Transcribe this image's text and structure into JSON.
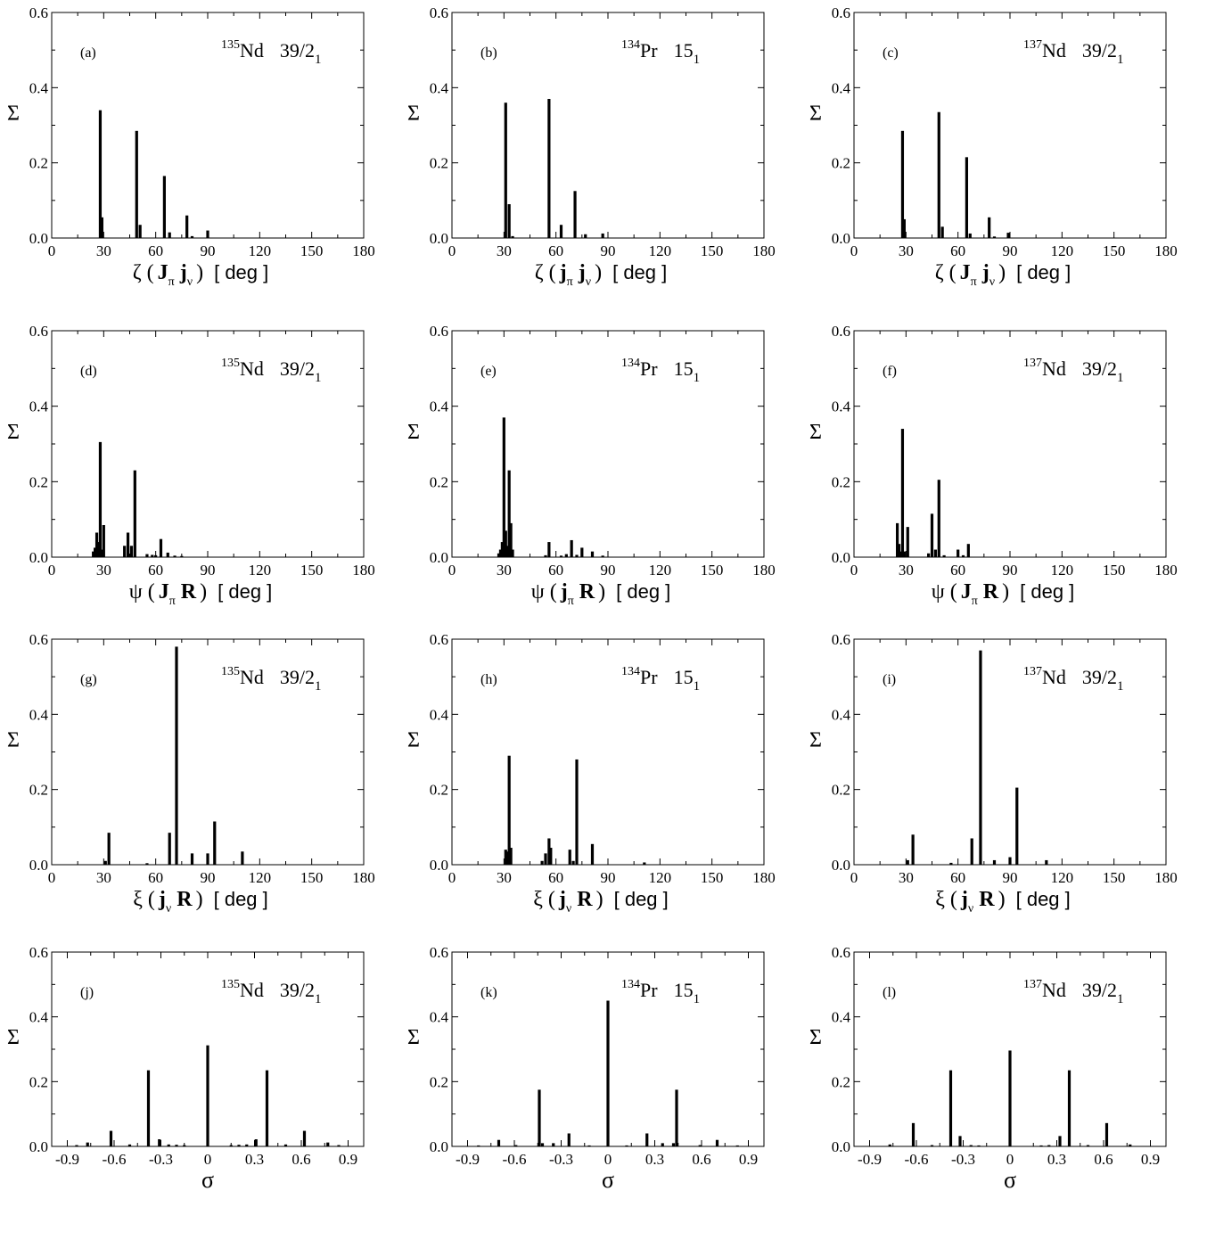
{
  "chart_data": [
    {
      "type": "bar",
      "panel": "(a)",
      "nucleus_mass": "135",
      "nucleus_symbol": "Nd",
      "state_main": "39/2",
      "state_sub": "1",
      "ylabel": "Σ",
      "xlabel": {
        "sym": "ζ",
        "v1": "J",
        "s1": "π",
        "v2": "j",
        "s2": "ν",
        "unit": "[ deg ]"
      },
      "xlim": [
        0,
        180
      ],
      "ylim": [
        0,
        0.6
      ],
      "xticks": [
        0,
        30,
        60,
        90,
        120,
        150,
        180
      ],
      "yticks": [
        0.0,
        0.2,
        0.4,
        0.6
      ],
      "yticklabels": [
        "0.0",
        "0.2",
        "0.4",
        "0.6"
      ],
      "grid": false,
      "x": [
        28,
        29,
        49,
        51,
        65,
        68,
        78,
        81,
        90
      ],
      "values": [
        0.34,
        0.055,
        0.285,
        0.035,
        0.165,
        0.015,
        0.06,
        0.005,
        0.02
      ]
    },
    {
      "type": "bar",
      "panel": "(b)",
      "nucleus_mass": "134",
      "nucleus_symbol": "Pr",
      "state_main": "15",
      "state_sub": "1",
      "ylabel": "Σ",
      "xlabel": {
        "sym": "ζ",
        "v1": "j",
        "s1": "π",
        "v2": "j",
        "s2": "ν",
        "unit": "[ deg ]"
      },
      "xlim": [
        0,
        180
      ],
      "ylim": [
        0,
        0.6
      ],
      "xticks": [
        0,
        30,
        60,
        90,
        120,
        150,
        180
      ],
      "yticks": [
        0.0,
        0.2,
        0.4,
        0.6
      ],
      "yticklabels": [
        "0.0",
        "0.2",
        "0.4",
        "0.6"
      ],
      "grid": false,
      "x": [
        31,
        33,
        35,
        56,
        63,
        71,
        77,
        87
      ],
      "values": [
        0.36,
        0.09,
        0.005,
        0.37,
        0.035,
        0.125,
        0.01,
        0.012
      ]
    },
    {
      "type": "bar",
      "panel": "(c)",
      "nucleus_mass": "137",
      "nucleus_symbol": "Nd",
      "state_main": "39/2",
      "state_sub": "1",
      "ylabel": "Σ",
      "xlabel": {
        "sym": "ζ",
        "v1": "J",
        "s1": "π",
        "v2": "j",
        "s2": "ν",
        "unit": "[ deg ]"
      },
      "xlim": [
        0,
        180
      ],
      "ylim": [
        0,
        0.6
      ],
      "xticks": [
        0,
        30,
        60,
        90,
        120,
        150,
        180
      ],
      "yticks": [
        0.0,
        0.2,
        0.4,
        0.6
      ],
      "yticklabels": [
        "0.0",
        "0.2",
        "0.4",
        "0.6"
      ],
      "grid": false,
      "x": [
        28,
        29,
        49,
        51,
        65,
        67,
        78,
        81,
        89
      ],
      "values": [
        0.285,
        0.05,
        0.335,
        0.03,
        0.215,
        0.012,
        0.055,
        0.004,
        0.014
      ]
    },
    {
      "type": "bar",
      "panel": "(d)",
      "nucleus_mass": "135",
      "nucleus_symbol": "Nd",
      "state_main": "39/2",
      "state_sub": "1",
      "ylabel": "Σ",
      "xlabel": {
        "sym": "ψ",
        "v1": "J",
        "s1": "π",
        "v2": "R",
        "s2": "",
        "unit": "[ deg ]"
      },
      "xlim": [
        0,
        180
      ],
      "ylim": [
        0,
        0.6
      ],
      "xticks": [
        0,
        30,
        60,
        90,
        120,
        150,
        180
      ],
      "yticks": [
        0.0,
        0.2,
        0.4,
        0.6
      ],
      "yticklabels": [
        "0.0",
        "0.2",
        "0.4",
        "0.6"
      ],
      "grid": false,
      "x": [
        24,
        25,
        26,
        27,
        28,
        29,
        30,
        42,
        44,
        46,
        48,
        55,
        58,
        60,
        63,
        67,
        71,
        75
      ],
      "values": [
        0.015,
        0.025,
        0.065,
        0.04,
        0.305,
        0.02,
        0.085,
        0.03,
        0.065,
        0.03,
        0.23,
        0.008,
        0.006,
        0.005,
        0.048,
        0.012,
        0.004,
        0.003
      ]
    },
    {
      "type": "bar",
      "panel": "(e)",
      "nucleus_mass": "134",
      "nucleus_symbol": "Pr",
      "state_main": "15",
      "state_sub": "1",
      "ylabel": "Σ",
      "xlabel": {
        "sym": "ψ",
        "v1": "j",
        "s1": "π",
        "v2": "R",
        "s2": "",
        "unit": "[ deg ]"
      },
      "xlim": [
        0,
        180
      ],
      "ylim": [
        0,
        0.6
      ],
      "xticks": [
        0,
        30,
        60,
        90,
        120,
        150,
        180
      ],
      "yticks": [
        0.0,
        0.2,
        0.4,
        0.6
      ],
      "yticklabels": [
        "0.0",
        "0.2",
        "0.4",
        "0.6"
      ],
      "grid": false,
      "x": [
        27,
        28,
        29,
        30,
        31,
        32,
        33,
        34,
        35,
        54,
        56,
        63,
        66,
        69,
        72,
        75,
        81,
        87
      ],
      "values": [
        0.01,
        0.02,
        0.04,
        0.37,
        0.07,
        0.03,
        0.23,
        0.09,
        0.02,
        0.005,
        0.04,
        0.004,
        0.008,
        0.045,
        0.006,
        0.025,
        0.015,
        0.004
      ]
    },
    {
      "type": "bar",
      "panel": "(f)",
      "nucleus_mass": "137",
      "nucleus_symbol": "Nd",
      "state_main": "39/2",
      "state_sub": "1",
      "ylabel": "Σ",
      "xlabel": {
        "sym": "ψ",
        "v1": "J",
        "s1": "π",
        "v2": "R",
        "s2": "",
        "unit": "[ deg ]"
      },
      "xlim": [
        0,
        180
      ],
      "ylim": [
        0,
        0.6
      ],
      "xticks": [
        0,
        30,
        60,
        90,
        120,
        150,
        180
      ],
      "yticks": [
        0.0,
        0.2,
        0.4,
        0.6
      ],
      "yticklabels": [
        "0.0",
        "0.2",
        "0.4",
        "0.6"
      ],
      "grid": false,
      "x": [
        25,
        26,
        27,
        28,
        29,
        31,
        43,
        45,
        47,
        49,
        52,
        60,
        63,
        66
      ],
      "values": [
        0.09,
        0.035,
        0.015,
        0.34,
        0.015,
        0.08,
        0.01,
        0.115,
        0.02,
        0.205,
        0.005,
        0.02,
        0.005,
        0.035
      ]
    },
    {
      "type": "bar",
      "panel": "(g)",
      "nucleus_mass": "135",
      "nucleus_symbol": "Nd",
      "state_main": "39/2",
      "state_sub": "1",
      "ylabel": "Σ",
      "xlabel": {
        "sym": "ξ",
        "v1": "j",
        "s1": "ν",
        "v2": "R",
        "s2": "",
        "unit": "[ deg ]"
      },
      "xlim": [
        0,
        180
      ],
      "ylim": [
        0,
        0.6
      ],
      "xticks": [
        0,
        30,
        60,
        90,
        120,
        150,
        180
      ],
      "yticks": [
        0.0,
        0.2,
        0.4,
        0.6
      ],
      "yticklabels": [
        "0.0",
        "0.2",
        "0.4",
        "0.6"
      ],
      "grid": false,
      "x": [
        31,
        33,
        55,
        68,
        72,
        81,
        90,
        94,
        110
      ],
      "values": [
        0.01,
        0.085,
        0.004,
        0.085,
        0.58,
        0.03,
        0.03,
        0.115,
        0.035
      ]
    },
    {
      "type": "bar",
      "panel": "(h)",
      "nucleus_mass": "134",
      "nucleus_symbol": "Pr",
      "state_main": "15",
      "state_sub": "1",
      "ylabel": "Σ",
      "xlabel": {
        "sym": "ξ",
        "v1": "j",
        "s1": "ν",
        "v2": "R",
        "s2": "",
        "unit": "[ deg ]"
      },
      "xlim": [
        0,
        180
      ],
      "ylim": [
        0,
        0.6
      ],
      "xticks": [
        0,
        30,
        60,
        90,
        120,
        150,
        180
      ],
      "yticks": [
        0.0,
        0.2,
        0.4,
        0.6
      ],
      "yticklabels": [
        "0.0",
        "0.2",
        "0.4",
        "0.6"
      ],
      "grid": false,
      "x": [
        31,
        32,
        33,
        34,
        52,
        54,
        56,
        57,
        68,
        70,
        72,
        81,
        111
      ],
      "values": [
        0.04,
        0.035,
        0.29,
        0.045,
        0.01,
        0.03,
        0.07,
        0.045,
        0.04,
        0.01,
        0.28,
        0.055,
        0.006
      ]
    },
    {
      "type": "bar",
      "panel": "(i)",
      "nucleus_mass": "137",
      "nucleus_symbol": "Nd",
      "state_main": "39/2",
      "state_sub": "1",
      "ylabel": "Σ",
      "xlabel": {
        "sym": "ξ",
        "v1": "j",
        "s1": "ν",
        "v2": "R",
        "s2": "",
        "unit": "[ deg ]"
      },
      "xlim": [
        0,
        180
      ],
      "ylim": [
        0,
        0.6
      ],
      "xticks": [
        0,
        30,
        60,
        90,
        120,
        150,
        180
      ],
      "yticks": [
        0.0,
        0.2,
        0.4,
        0.6
      ],
      "yticklabels": [
        "0.0",
        "0.2",
        "0.4",
        "0.6"
      ],
      "grid": false,
      "x": [
        31,
        34,
        56,
        68,
        73,
        81,
        90,
        94,
        111
      ],
      "values": [
        0.012,
        0.08,
        0.005,
        0.07,
        0.57,
        0.012,
        0.02,
        0.205,
        0.012
      ]
    },
    {
      "type": "bar",
      "panel": "(j)",
      "nucleus_mass": "135",
      "nucleus_symbol": "Nd",
      "state_main": "39/2",
      "state_sub": "1",
      "ylabel": "Σ",
      "xlabel": {
        "sym": "σ"
      },
      "xlim": [
        -1.0,
        1.0
      ],
      "ylim": [
        0,
        0.6
      ],
      "xticks": [
        -0.9,
        -0.6,
        -0.3,
        0,
        0.3,
        0.6,
        0.9
      ],
      "xticklabels": [
        "-0.9",
        "-0.6",
        "-0.3",
        "0",
        "0.3",
        "0.6",
        "0.9"
      ],
      "yticks": [
        0.0,
        0.2,
        0.4,
        0.6
      ],
      "yticklabels": [
        "0.0",
        "0.2",
        "0.4",
        "0.6"
      ],
      "grid": false,
      "x": [
        -0.84,
        -0.77,
        -0.62,
        -0.5,
        -0.38,
        -0.31,
        -0.25,
        -0.2,
        -0.15,
        0,
        0.15,
        0.2,
        0.25,
        0.31,
        0.38,
        0.5,
        0.62,
        0.77,
        0.84
      ],
      "values": [
        0.004,
        0.012,
        0.048,
        0.006,
        0.235,
        0.022,
        0.006,
        0.005,
        0.004,
        0.312,
        0.004,
        0.005,
        0.006,
        0.022,
        0.235,
        0.006,
        0.048,
        0.012,
        0.004
      ]
    },
    {
      "type": "bar",
      "panel": "(k)",
      "nucleus_mass": "134",
      "nucleus_symbol": "Pr",
      "state_main": "15",
      "state_sub": "1",
      "ylabel": "Σ",
      "xlabel": {
        "sym": "σ"
      },
      "xlim": [
        -1.0,
        1.0
      ],
      "ylim": [
        0,
        0.6
      ],
      "xticks": [
        -0.9,
        -0.6,
        -0.3,
        0,
        0.3,
        0.6,
        0.9
      ],
      "xticklabels": [
        "-0.9",
        "-0.6",
        "-0.3",
        "0",
        "0.3",
        "0.6",
        "0.9"
      ],
      "yticks": [
        0.0,
        0.2,
        0.4,
        0.6
      ],
      "yticklabels": [
        "0.0",
        "0.2",
        "0.4",
        "0.6"
      ],
      "grid": false,
      "x": [
        -0.83,
        -0.7,
        -0.59,
        -0.44,
        -0.42,
        -0.35,
        -0.25,
        -0.12,
        0,
        0.12,
        0.25,
        0.35,
        0.42,
        0.44,
        0.59,
        0.7,
        0.83
      ],
      "values": [
        0.003,
        0.02,
        0.004,
        0.175,
        0.01,
        0.01,
        0.04,
        0.003,
        0.45,
        0.003,
        0.04,
        0.01,
        0.01,
        0.175,
        0.004,
        0.02,
        0.003
      ]
    },
    {
      "type": "bar",
      "panel": "(l)",
      "nucleus_mass": "137",
      "nucleus_symbol": "Nd",
      "state_main": "39/2",
      "state_sub": "1",
      "ylabel": "Σ",
      "xlabel": {
        "sym": "σ"
      },
      "xlim": [
        -1.0,
        1.0
      ],
      "ylim": [
        0,
        0.6
      ],
      "xticks": [
        -0.9,
        -0.6,
        -0.3,
        0,
        0.3,
        0.6,
        0.9
      ],
      "xticklabels": [
        "-0.9",
        "-0.6",
        "-0.3",
        "0",
        "0.3",
        "0.6",
        "0.9"
      ],
      "yticks": [
        0.0,
        0.2,
        0.4,
        0.6
      ],
      "yticklabels": [
        "0.0",
        "0.2",
        "0.4",
        "0.6"
      ],
      "grid": false,
      "x": [
        -0.77,
        -0.62,
        -0.5,
        -0.38,
        -0.32,
        -0.25,
        -0.2,
        0,
        0.2,
        0.25,
        0.32,
        0.38,
        0.5,
        0.62,
        0.77
      ],
      "values": [
        0.006,
        0.072,
        0.004,
        0.235,
        0.032,
        0.004,
        0.003,
        0.296,
        0.003,
        0.004,
        0.032,
        0.235,
        0.004,
        0.072,
        0.006
      ]
    }
  ]
}
